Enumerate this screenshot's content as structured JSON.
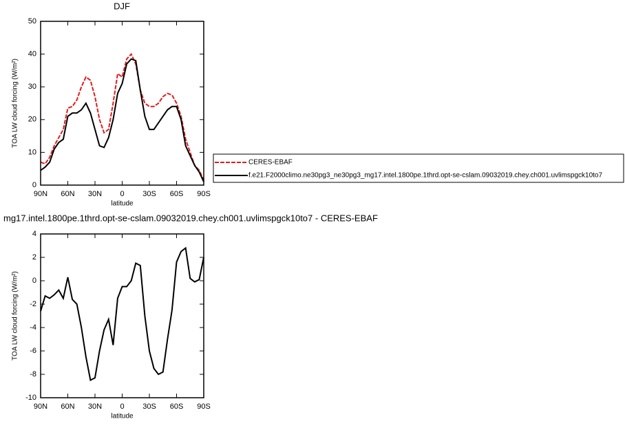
{
  "chart_data": [
    {
      "type": "line",
      "title": "DJF",
      "xlabel": "latitude",
      "ylabel": "TOA LW cloud forcing (W/m²)",
      "x": [
        90,
        85,
        80,
        75,
        70,
        65,
        60,
        55,
        50,
        45,
        40,
        35,
        30,
        25,
        20,
        15,
        10,
        5,
        0,
        -5,
        -10,
        -15,
        -20,
        -25,
        -30,
        -35,
        -40,
        -45,
        -50,
        -55,
        -60,
        -65,
        -70,
        -75,
        -80,
        -85,
        -90
      ],
      "xlim": [
        90,
        -90
      ],
      "xticks": [
        {
          "value": 90,
          "label": "90N"
        },
        {
          "value": 60,
          "label": "60N"
        },
        {
          "value": 30,
          "label": "30N"
        },
        0,
        {
          "value": -30,
          "label": "30S"
        },
        {
          "value": -60,
          "label": "60S"
        },
        {
          "value": -90,
          "label": "90S"
        }
      ],
      "ylim": [
        0,
        50
      ],
      "yticks": [
        0,
        10,
        20,
        30,
        40,
        50
      ],
      "series": [
        {
          "name": "CERES-EBAF",
          "color": "#e41a1c",
          "style": "dashed",
          "values": [
            7,
            6.5,
            8.5,
            12,
            14.5,
            17,
            23.5,
            24,
            26,
            30,
            33,
            32,
            27,
            20,
            16,
            17,
            25,
            34,
            33,
            38.5,
            40,
            37,
            29,
            25,
            24,
            24,
            25,
            27,
            28,
            27.5,
            25,
            21,
            14,
            10,
            6,
            4.5,
            1.5
          ]
        },
        {
          "name": "f.e21.F2000climo.ne30pg3_ne30pg3_mg17.intel.1800pe.1thrd.opt-se-cslam.09032019.chey.ch001.uvlimspgck10to7",
          "color": "#000000",
          "style": "solid",
          "values": [
            4.5,
            5.5,
            7,
            11,
            13,
            14,
            21,
            22,
            22,
            23,
            25,
            22,
            17,
            12,
            11.5,
            14.5,
            20,
            28,
            31,
            37,
            38.5,
            38,
            29,
            21,
            17,
            17,
            19,
            21,
            23,
            24,
            24,
            20,
            12,
            9,
            6,
            4,
            1
          ]
        }
      ]
    },
    {
      "type": "line",
      "title": "mg17.intel.1800pe.1thrd.opt-se-cslam.09032019.chey.ch001.uvlimspgck10to7 - CERES-EBAF",
      "xlabel": "latitude",
      "ylabel": "TOA LW cloud forcing (W/m²)",
      "x": [
        90,
        85,
        80,
        75,
        70,
        65,
        60,
        55,
        50,
        45,
        40,
        35,
        30,
        25,
        20,
        15,
        10,
        5,
        0,
        -5,
        -10,
        -15,
        -20,
        -25,
        -30,
        -35,
        -40,
        -45,
        -50,
        -55,
        -60,
        -65,
        -70,
        -75,
        -80,
        -85,
        -90
      ],
      "xlim": [
        90,
        -90
      ],
      "xticks": [
        {
          "value": 90,
          "label": "90N"
        },
        {
          "value": 60,
          "label": "60N"
        },
        {
          "value": 30,
          "label": "30N"
        },
        0,
        {
          "value": -30,
          "label": "30S"
        },
        {
          "value": -60,
          "label": "60S"
        },
        {
          "value": -90,
          "label": "90S"
        }
      ],
      "ylim": [
        -10,
        4
      ],
      "yticks": [
        -10,
        -8,
        -6,
        -4,
        -2,
        0,
        2,
        4
      ],
      "color": "#000000",
      "style": "solid",
      "values": [
        -2.6,
        -1.3,
        -1.5,
        -1.2,
        -0.8,
        -1.5,
        0.3,
        -1.6,
        -2,
        -4,
        -6.5,
        -8.5,
        -8.3,
        -6,
        -4.2,
        -3.3,
        -5.5,
        -1.5,
        -0.5,
        -0.5,
        0,
        1.5,
        1.3,
        -3,
        -6,
        -7.5,
        -8,
        -7.8,
        -5,
        -2.5,
        1.6,
        2.5,
        2.8,
        0.2,
        -0.1,
        0.1,
        2
      ]
    }
  ]
}
